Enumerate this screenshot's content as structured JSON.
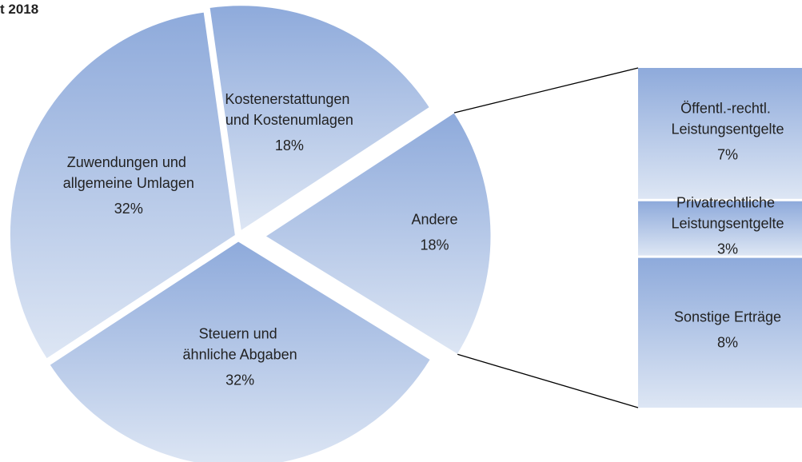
{
  "chart_data": {
    "type": "pie",
    "title": "t 2018",
    "categories": [
      "Kostenerstattungen und Kostenumlagen",
      "Andere",
      "Steuern und ähnliche Abgaben",
      "Zuwendungen und allgemeine Umlagen"
    ],
    "values": [
      18,
      18,
      32,
      32
    ],
    "value_labels": [
      "18%",
      "18%",
      "32%",
      "32%"
    ],
    "sub_categories": [
      "Öffentl.-rechtl. Leistungsentgelte",
      "Privatrechtliche Leistungsentgelte",
      "Sonstige Erträge"
    ],
    "sub_values": [
      7,
      3,
      8
    ],
    "sub_value_labels": [
      "7%",
      "3%",
      "8%"
    ],
    "colors": [
      "#8eaadb",
      "#dde6f4"
    ]
  }
}
